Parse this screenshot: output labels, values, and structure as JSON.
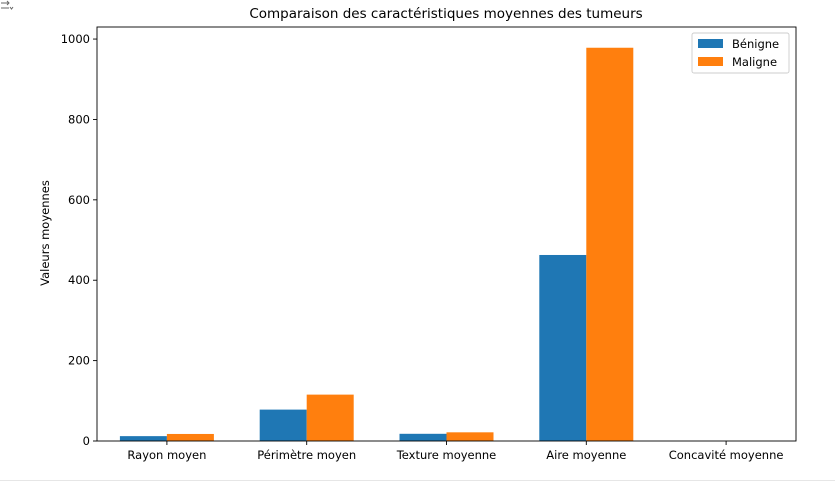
{
  "chart_data": {
    "type": "bar",
    "title": "Comparaison des caractéristiques moyennes des tumeurs",
    "xlabel": "",
    "ylabel": "Valeurs moyennes",
    "categories": [
      "Rayon moyen",
      "Périmètre moyen",
      "Texture moyenne",
      "Aire moyenne",
      "Concavité moyenne"
    ],
    "series": [
      {
        "name": "Bénigne",
        "color": "#1f77b4",
        "values": [
          12.1,
          78.1,
          17.9,
          462.8,
          0.05
        ]
      },
      {
        "name": "Maligne",
        "color": "#ff7f0e",
        "values": [
          17.5,
          115.4,
          21.6,
          978.4,
          0.16
        ]
      }
    ],
    "ylim": [
      0,
      1030
    ],
    "yticks": [
      0,
      200,
      400,
      600,
      800,
      1000
    ],
    "legend": "top-right",
    "grid": false
  },
  "toolbar": {
    "icon": "output-toggle-icon"
  }
}
